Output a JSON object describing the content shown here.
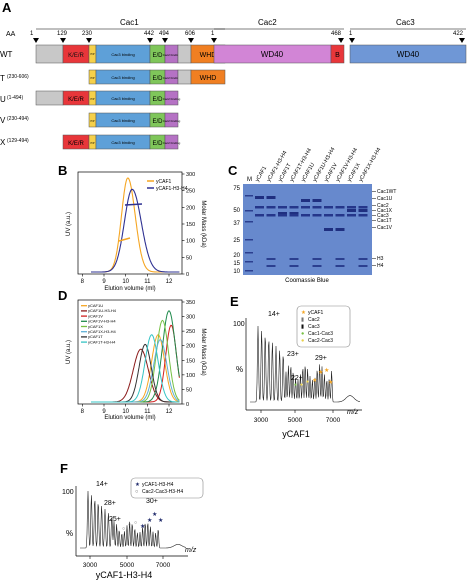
{
  "panel_letters": {
    "a": "A",
    "b": "B",
    "c": "C",
    "d": "D",
    "e": "E",
    "f": "F"
  },
  "panel_a": {
    "aa_label": "AA",
    "protein_labels": {
      "cac1": "Cac1",
      "cac2": "Cac2",
      "cac3": "Cac3"
    },
    "positions": {
      "cac1": [
        "1",
        "129",
        "230",
        "442",
        "494",
        "606"
      ],
      "cac2": [
        "1",
        "468"
      ],
      "cac3": [
        "1",
        "422"
      ]
    },
    "constructs": [
      {
        "name": "WT",
        "range": ""
      },
      {
        "name": "T",
        "range": "(230-606)"
      },
      {
        "name": "U",
        "range": "(1-494)"
      },
      {
        "name": "V",
        "range": "(230-494)"
      },
      {
        "name": "X",
        "range": "(129-494)"
      }
    ],
    "domains": {
      "ker": "K/E/R",
      "pip": "PIP",
      "cac3bind": "Cac3 binding",
      "ed": "E/D",
      "cac2bind": "Cac2 binding",
      "whd": "WHD",
      "wd40": "WD40",
      "b": "B"
    },
    "colors": {
      "grey": "#c8c8c8",
      "ker": "#e8363a",
      "pip": "#f5d04a",
      "cac3bind": "#5ea0d8",
      "ed": "#7fc65a",
      "cac2bind": "#b572c4",
      "whd": "#f07f22",
      "wd40_cac2": "#d285d6",
      "wd40_cac3": "#6f97d6"
    }
  },
  "panel_b": {
    "xlabel": "Elution volume (ml)",
    "ylabel_left": "UV (a.u.)",
    "ylabel_right": "Molar Mass (kDa)",
    "xticks": [
      "8",
      "9",
      "10",
      "11",
      "12"
    ],
    "yticks_right": [
      "0",
      "50",
      "100",
      "150",
      "200",
      "250",
      "300"
    ],
    "legend": [
      {
        "name": "yCAF1",
        "color": "#f5a623"
      },
      {
        "name": "yCAF1-H3-H4",
        "color": "#2e3192"
      }
    ]
  },
  "panel_c": {
    "marker_label": "M",
    "lanes": [
      "yCAF1",
      "yCAF1-H3-H4",
      "yCAF1T",
      "yCAF1T-H3-H4",
      "yCAF1U",
      "yCAF1U-H3-H4",
      "yCAF1V",
      "yCAF1V-H3-H4",
      "yCAF1X",
      "yCAF1X-H3-H4"
    ],
    "mw_markers": [
      "75",
      "50",
      "37",
      "25",
      "20",
      "15",
      "10"
    ],
    "band_labels": [
      "Cac1WT",
      "Cac1U",
      "Cac2",
      "Cac1X",
      "Cac3",
      "Cac1T",
      "Cac1V",
      "H3",
      "H4"
    ],
    "caption": "Coomassie Blue"
  },
  "panel_d": {
    "xlabel": "Elution volume (ml)",
    "ylabel_left": "UV (a.u.)",
    "ylabel_right": "Molar Mass (kDa)",
    "xticks": [
      "8",
      "9",
      "10",
      "11",
      "12"
    ],
    "yticks_right": [
      "0",
      "50",
      "100",
      "150",
      "200",
      "250",
      "300",
      "350"
    ],
    "legend": [
      {
        "name": "yCAF1U",
        "color": "#f5a623"
      },
      {
        "name": "yCAF1U-H3-H4",
        "color": "#8b1a1a"
      },
      {
        "name": "yCAF1V",
        "color": "#d11f1f"
      },
      {
        "name": "yCAF1V-H3-H4",
        "color": "#1f8a4c"
      },
      {
        "name": "yCAF1X",
        "color": "#76c043"
      },
      {
        "name": "yCAF1X-H3-H4",
        "color": "#5fb0d6"
      },
      {
        "name": "yCAF1T",
        "color": "#333333"
      },
      {
        "name": "yCAF1T-H3-H4",
        "color": "#35c4c4"
      }
    ]
  },
  "panel_e": {
    "ylabel": "%",
    "y100": "100",
    "xlabel_mz": "m/z",
    "xticks": [
      "3000",
      "5000",
      "7000"
    ],
    "peak_labels": [
      "14+",
      "23+",
      "22+",
      "29+"
    ],
    "title": "yCAF1",
    "legend": [
      "yCAF1",
      "Cac2",
      "Cac3",
      "Cac1-Cac3",
      "Cac2-Cac3"
    ]
  },
  "panel_f": {
    "ylabel": "%",
    "y100": "100",
    "xlabel_mz": "m/z",
    "xticks": [
      "3000",
      "5000",
      "7000"
    ],
    "peak_labels": [
      "14+",
      "28+",
      "25+",
      "30+"
    ],
    "title": "yCAF1-H3-H4",
    "legend": [
      "yCAF1-H3-H4",
      "Cac2-Cac3-H3-H4"
    ]
  }
}
